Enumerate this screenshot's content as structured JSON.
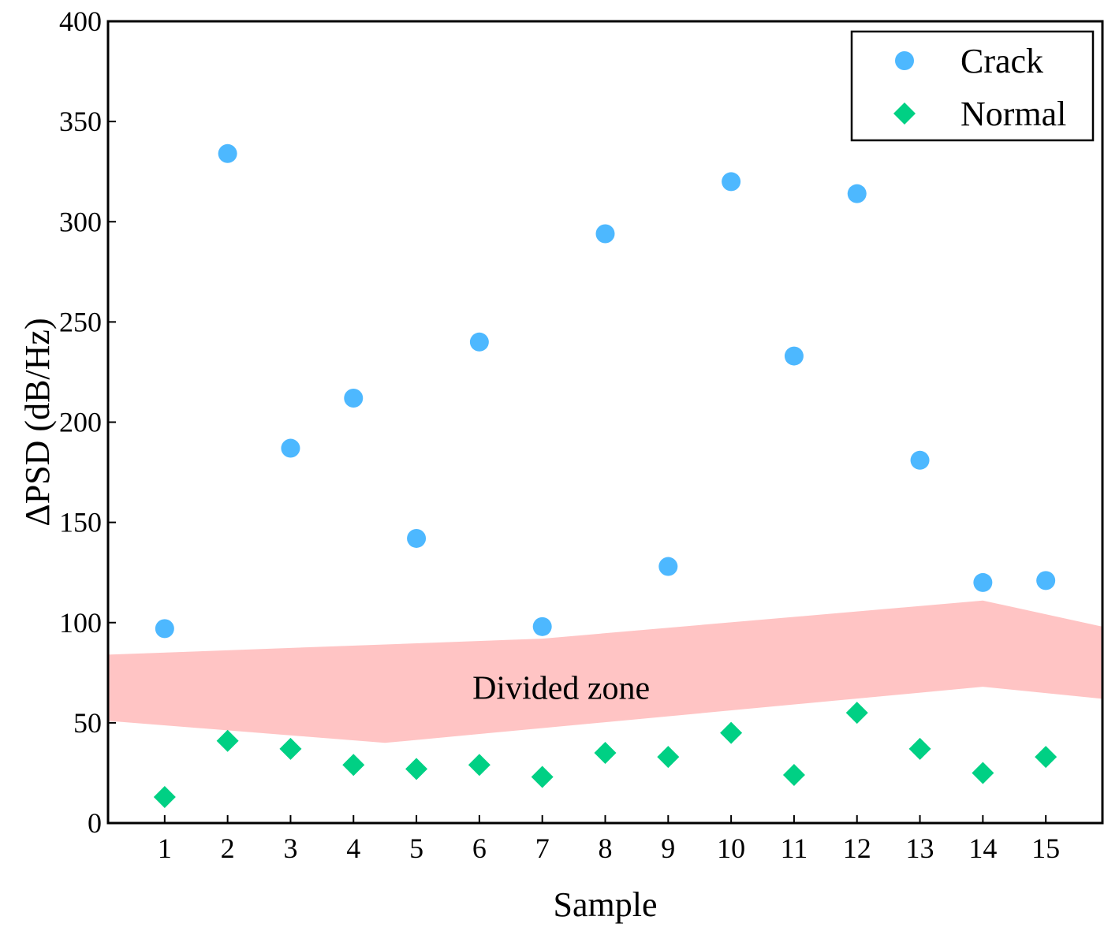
{
  "chart_data": {
    "type": "scatter",
    "xlabel": "Sample",
    "ylabel": "ΔPSD (dB/Hz)",
    "xlim": [
      0.1,
      15.9
    ],
    "ylim": [
      0,
      400
    ],
    "xticks": [
      1,
      2,
      3,
      4,
      5,
      6,
      7,
      8,
      9,
      10,
      11,
      12,
      13,
      14,
      15
    ],
    "yticks": [
      0,
      50,
      100,
      150,
      200,
      250,
      300,
      350,
      400
    ],
    "legend_position": "top-right",
    "series": [
      {
        "name": "Crack",
        "marker": "circle",
        "color": "#4db8ff",
        "x": [
          1,
          2,
          3,
          4,
          5,
          6,
          7,
          8,
          9,
          10,
          11,
          12,
          13,
          14,
          15
        ],
        "values": [
          97,
          334,
          187,
          212,
          142,
          240,
          98,
          294,
          128,
          320,
          233,
          314,
          181,
          120,
          121
        ]
      },
      {
        "name": "Normal",
        "marker": "diamond",
        "color": "#00d084",
        "x": [
          1,
          2,
          3,
          4,
          5,
          6,
          7,
          8,
          9,
          10,
          11,
          12,
          13,
          14,
          15
        ],
        "values": [
          13,
          41,
          37,
          29,
          27,
          29,
          23,
          35,
          33,
          45,
          24,
          55,
          37,
          25,
          33
        ]
      }
    ],
    "zone": {
      "label": "Divided zone",
      "color": "#ffc4c4",
      "upper": [
        [
          0.1,
          84
        ],
        [
          7,
          92
        ],
        [
          14,
          111
        ],
        [
          15.9,
          98
        ]
      ],
      "lower": [
        [
          0.1,
          51
        ],
        [
          4.5,
          40
        ],
        [
          14,
          68
        ],
        [
          15.9,
          62
        ]
      ]
    }
  }
}
